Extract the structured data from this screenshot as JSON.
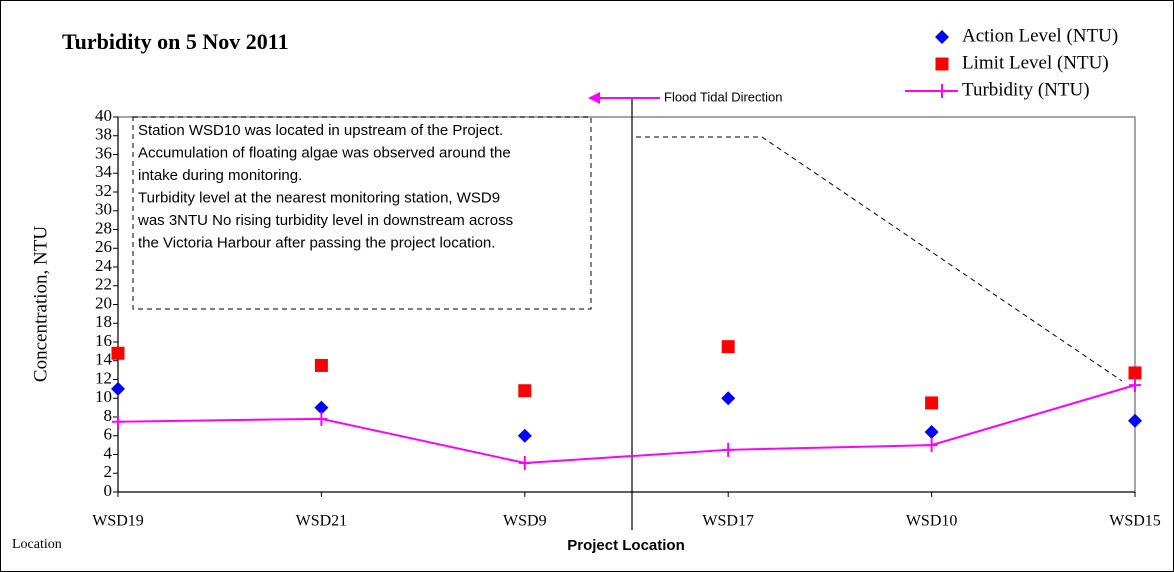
{
  "chart_data": {
    "type": "line",
    "title": "Turbidity on 5 Nov 2011",
    "ylabel": "Concentration, NTU",
    "xlabel": "Project Location",
    "corner_label": "Location",
    "categories": [
      "WSD19",
      "WSD21",
      "WSD9",
      "WSD17",
      "WSD10",
      "WSD15"
    ],
    "series": [
      {
        "name": "Action Level (NTU)",
        "color": "#0000ff",
        "marker": "diamond",
        "values": [
          11,
          9,
          6,
          10,
          6.4,
          7.6
        ]
      },
      {
        "name": "Limit Level (NTU)",
        "color": "#ff0000",
        "marker": "square",
        "values": [
          14.8,
          13.5,
          10.8,
          15.5,
          9.5,
          12.7
        ]
      },
      {
        "name": "Turbidity (NTU)",
        "color": "#ff00ff",
        "marker": "line",
        "values": [
          7.5,
          7.8,
          3.1,
          4.5,
          5,
          11.4
        ]
      }
    ],
    "ylim": [
      0,
      40
    ],
    "yticks": [
      0,
      2,
      4,
      6,
      8,
      10,
      12,
      14,
      16,
      18,
      20,
      22,
      24,
      26,
      28,
      30,
      32,
      34,
      36,
      38,
      40
    ],
    "legend": "top-right",
    "annotations": {
      "direction": "Flood Tidal Direction",
      "note": [
        "Station WSD10 was located in upstream of the Project.",
        "Accumulation of floating algae was observed around the",
        "intake during monitoring.",
        "Turbidity level at the nearest monitoring station, WSD9",
        "was 3NTU No rising turbidity level in downstream across",
        "the Victoria Harbour after passing the project location."
      ]
    }
  }
}
